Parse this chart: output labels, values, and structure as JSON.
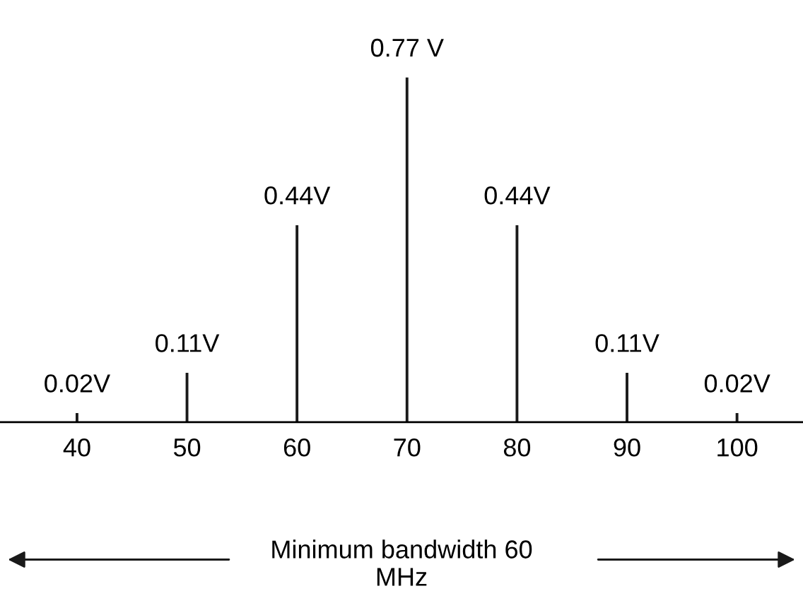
{
  "chart_data": {
    "type": "bar",
    "x": [
      40,
      50,
      60,
      70,
      80,
      90,
      100
    ],
    "values": [
      0.02,
      0.11,
      0.44,
      0.77,
      0.44,
      0.11,
      0.02
    ],
    "value_labels": [
      "0.02V",
      "0.11V",
      "0.44V",
      "0.77 V",
      "0.44V",
      "0.11V",
      "0.02V"
    ],
    "color": "#1a1a1a",
    "xlim": [
      33,
      106
    ],
    "xticks": [
      40,
      50,
      60,
      70,
      80,
      90,
      100
    ],
    "tick_labels": "x",
    "grid": false,
    "annotations": [
      "Minimum bandwidth 60\nMHz"
    ]
  }
}
